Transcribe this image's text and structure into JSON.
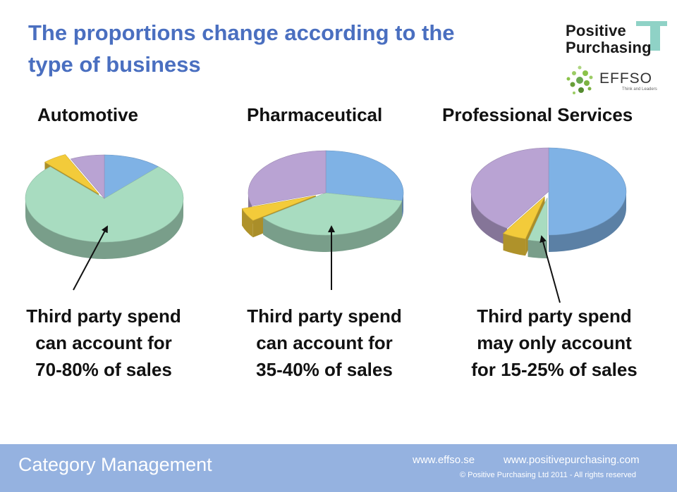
{
  "title_line1": "The proportions change according to the",
  "title_line2": "type of business",
  "logos": {
    "positive_word1": "Positive",
    "positive_word2": "Purchasing",
    "effso_name": "EFFSO",
    "effso_tagline": "Think and Leaders",
    "plus_color": "#8fd2c6"
  },
  "slice_colors": {
    "blue": "#7fb2e5",
    "green": "#a8dcc0",
    "yellow": "#f3cb3a",
    "purple": "#b9a3d3"
  },
  "chart_data": [
    {
      "type": "pie",
      "title": "Automotive",
      "slices": [
        {
          "color": "blue",
          "value": 12
        },
        {
          "color": "green",
          "value": 76
        },
        {
          "color": "yellow",
          "value": 5
        },
        {
          "color": "purple",
          "value": 7
        }
      ],
      "annotation": [
        "Third party spend",
        "can account for",
        "70-80% of sales"
      ]
    },
    {
      "type": "pie",
      "title": "Pharmaceutical",
      "slices": [
        {
          "color": "blue",
          "value": 28
        },
        {
          "color": "green",
          "value": 37
        },
        {
          "color": "yellow",
          "value": 5
        },
        {
          "color": "purple",
          "value": 30
        }
      ],
      "annotation": [
        "Third party spend",
        "can account for",
        "35-40% of sales"
      ]
    },
    {
      "type": "pie",
      "title": "Professional Services",
      "slices": [
        {
          "color": "blue",
          "value": 50
        },
        {
          "color": "green",
          "value": 4
        },
        {
          "color": "yellow",
          "value": 5
        },
        {
          "color": "purple",
          "value": 41
        }
      ],
      "annotation": [
        "Third party spend",
        "may only account",
        "for 15-25% of sales"
      ]
    }
  ],
  "footer": {
    "label": "Category Management",
    "website1": "www.effso.se",
    "website2": "www.positivepurchasing.com",
    "copyright": "©  Positive Purchasing Ltd 2011 - All rights reserved"
  }
}
